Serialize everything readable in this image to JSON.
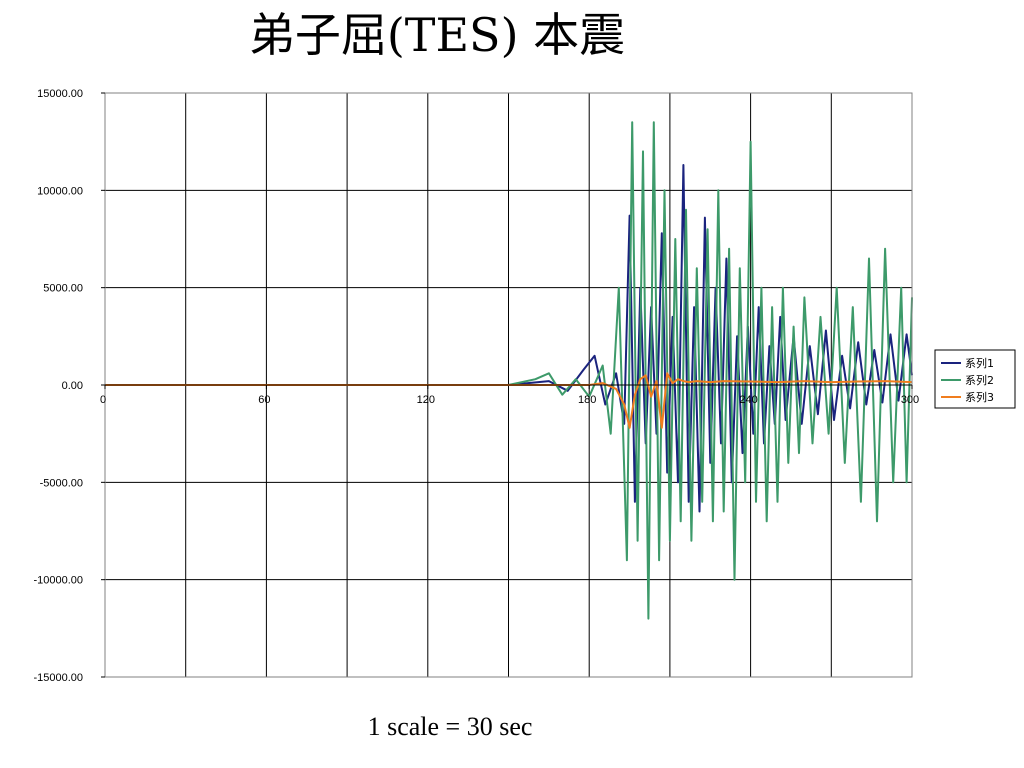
{
  "slide": {
    "title": "弟子屈(TES) 本震",
    "caption": "1 scale = 30 sec"
  },
  "chart_data": {
    "type": "line",
    "title": "弟子屈(TES) 本震",
    "x_ticks": [
      "0",
      "60",
      "120",
      "180",
      "240",
      "300"
    ],
    "y_ticks": [
      "15000.00",
      "10000.00",
      "5000.00",
      "0.00",
      "-5000.00",
      "-10000.00",
      "-15000.00"
    ],
    "xlim": [
      0,
      300
    ],
    "ylim": [
      -15000,
      15000
    ],
    "x_grid_step": 30,
    "grid": true,
    "legend_position": "right",
    "series": [
      {
        "name": "系列1",
        "color": "#1a237e",
        "x": [
          0,
          60,
          120,
          150,
          165,
          172,
          178,
          182,
          186,
          190,
          193,
          195,
          197,
          199,
          201,
          203,
          205,
          207,
          209,
          211,
          213,
          215,
          217,
          219,
          221,
          223,
          225,
          227,
          229,
          231,
          233,
          235,
          237,
          239,
          241,
          243,
          245,
          247,
          249,
          251,
          253,
          256,
          259,
          262,
          265,
          268,
          271,
          274,
          277,
          280,
          283,
          286,
          289,
          292,
          295,
          298,
          300
        ],
        "y": [
          0,
          0,
          0,
          0,
          200,
          -300,
          800,
          1500,
          -1000,
          600,
          -2000,
          8700,
          -6000,
          5000,
          -3000,
          4000,
          -2500,
          7800,
          -4500,
          3500,
          -5000,
          11300,
          -6000,
          4000,
          -6500,
          8600,
          -4000,
          5000,
          -3000,
          6500,
          -5000,
          2500,
          -3500,
          3000,
          -2500,
          4000,
          -3000,
          2000,
          -2000,
          3500,
          -1800,
          2500,
          -2000,
          2000,
          -1500,
          2800,
          -1800,
          1500,
          -1200,
          2200,
          -1000,
          1800,
          -900,
          2600,
          -800,
          2600,
          500
        ]
      },
      {
        "name": "系列2",
        "color": "#3d9a6a",
        "x": [
          0,
          60,
          120,
          150,
          160,
          165,
          170,
          175,
          180,
          185,
          188,
          191,
          194,
          196,
          198,
          200,
          202,
          204,
          206,
          208,
          210,
          212,
          214,
          216,
          218,
          220,
          222,
          224,
          226,
          228,
          230,
          232,
          234,
          236,
          238,
          240,
          242,
          244,
          246,
          248,
          250,
          252,
          254,
          256,
          258,
          260,
          263,
          266,
          269,
          272,
          275,
          278,
          281,
          284,
          287,
          290,
          293,
          296,
          298,
          300
        ],
        "y": [
          0,
          0,
          0,
          0,
          300,
          600,
          -500,
          300,
          -600,
          1000,
          -2500,
          5000,
          -9000,
          13500,
          -8000,
          12000,
          -12000,
          13500,
          -9000,
          10000,
          -8000,
          7500,
          -7000,
          9000,
          -8000,
          6000,
          -6000,
          8000,
          -7000,
          10000,
          -6500,
          7000,
          -10000,
          6000,
          -5000,
          12500,
          -6000,
          5000,
          -7000,
          4000,
          -6000,
          5000,
          -4000,
          3000,
          -3500,
          4500,
          -3000,
          3500,
          -2500,
          5000,
          -4000,
          4000,
          -6000,
          6500,
          -7000,
          7000,
          -5000,
          5000,
          -5000,
          4500
        ]
      },
      {
        "name": "系列3",
        "color": "#f07d1e",
        "x": [
          0,
          60,
          120,
          170,
          180,
          185,
          190,
          193,
          195,
          197,
          199,
          201,
          203,
          205,
          207,
          209,
          211,
          213,
          215,
          217,
          220,
          225,
          230,
          240,
          250,
          260,
          270,
          280,
          290,
          300
        ],
        "y": [
          0,
          0,
          0,
          0,
          0,
          100,
          -200,
          -1000,
          -2200,
          -500,
          300,
          500,
          -600,
          200,
          -2200,
          600,
          100,
          300,
          200,
          150,
          200,
          150,
          200,
          180,
          150,
          200,
          150,
          180,
          200,
          150
        ]
      }
    ]
  }
}
